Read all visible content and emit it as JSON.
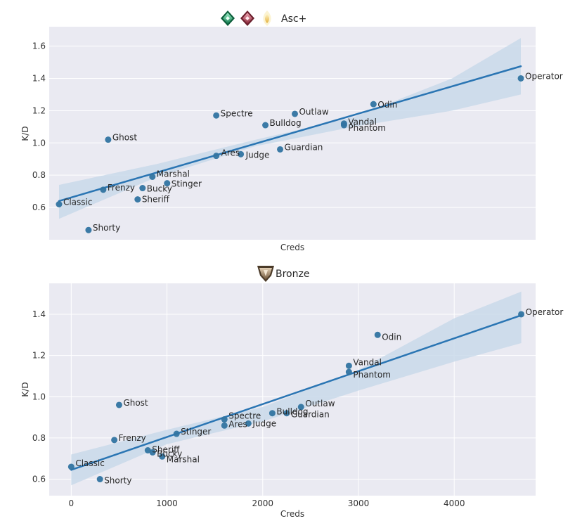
{
  "colors": {
    "background": "#ffffff",
    "plot_bg": "#eaeaf2",
    "point": "#3274a1",
    "line": "#2a75b3",
    "ci_band": "#c9d9ea",
    "grid": "#ffffff"
  },
  "chart_data": [
    {
      "type": "scatter",
      "title": "Asc+",
      "title_icons": [
        "green-rank-gem-icon",
        "red-rank-gem-icon",
        "gold-rank-wing-icon"
      ],
      "xlabel": "Creds",
      "ylabel": "K/D",
      "xlim": [
        -100,
        4850
      ],
      "ylim": [
        0.4,
        1.72
      ],
      "xticks": [],
      "yticks": [
        0.6,
        0.8,
        1.0,
        1.2,
        1.4,
        1.6
      ],
      "ytick_labels": [
        "0.6",
        "0.8",
        "1.0",
        "1.2",
        "1.4",
        "1.6"
      ],
      "regression": {
        "x0": 0,
        "y0": 0.64,
        "x1": 4700,
        "y1": 1.475
      },
      "ci_band": {
        "x": [
          0,
          1000,
          2000,
          3000,
          4000,
          4700
        ],
        "lower": [
          0.53,
          0.79,
          0.98,
          1.1,
          1.2,
          1.3
        ],
        "upper": [
          0.74,
          0.87,
          1.02,
          1.16,
          1.4,
          1.65
        ]
      },
      "points": [
        {
          "label": "Classic",
          "x": 0,
          "y": 0.62
        },
        {
          "label": "Shorty",
          "x": 300,
          "y": 0.46
        },
        {
          "label": "Frenzy",
          "x": 450,
          "y": 0.71
        },
        {
          "label": "Ghost",
          "x": 500,
          "y": 1.02
        },
        {
          "label": "Sheriff",
          "x": 800,
          "y": 0.65
        },
        {
          "label": "Bucky",
          "x": 850,
          "y": 0.72
        },
        {
          "label": "Marshal",
          "x": 950,
          "y": 0.79
        },
        {
          "label": "Stinger",
          "x": 1100,
          "y": 0.75
        },
        {
          "label": "Spectre",
          "x": 1600,
          "y": 1.17
        },
        {
          "label": "Ares",
          "x": 1600,
          "y": 0.92
        },
        {
          "label": "Judge",
          "x": 1850,
          "y": 0.93
        },
        {
          "label": "Bulldog",
          "x": 2100,
          "y": 1.11
        },
        {
          "label": "Guardian",
          "x": 2250,
          "y": 0.96
        },
        {
          "label": "Outlaw",
          "x": 2400,
          "y": 1.18
        },
        {
          "label": "Vandal",
          "x": 2900,
          "y": 1.12
        },
        {
          "label": "Phantom",
          "x": 2900,
          "y": 1.11
        },
        {
          "label": "Odin",
          "x": 3200,
          "y": 1.24
        },
        {
          "label": "Operator",
          "x": 4700,
          "y": 1.4
        }
      ]
    },
    {
      "type": "scatter",
      "title": "Bronze",
      "title_icons": [
        "bronze-rank-icon"
      ],
      "xlabel": "Creds",
      "ylabel": "K/D",
      "xlim": [
        -230,
        4850
      ],
      "ylim": [
        0.52,
        1.55
      ],
      "xticks": [
        0,
        1000,
        2000,
        3000,
        4000
      ],
      "xtick_labels": [
        "0",
        "1000",
        "2000",
        "3000",
        "4000"
      ],
      "yticks": [
        0.6,
        0.8,
        1.0,
        1.2,
        1.4
      ],
      "ytick_labels": [
        "0.6",
        "0.8",
        "1.0",
        "1.2",
        "1.4"
      ],
      "regression": {
        "x0": 0,
        "y0": 0.645,
        "x1": 4700,
        "y1": 1.395
      },
      "ci_band": {
        "x": [
          0,
          1000,
          2000,
          3000,
          4000,
          4700
        ],
        "lower": [
          0.57,
          0.77,
          0.88,
          1.03,
          1.17,
          1.26
        ],
        "upper": [
          0.72,
          0.84,
          0.95,
          1.13,
          1.38,
          1.51
        ]
      },
      "points": [
        {
          "label": "Classic",
          "x": 0,
          "y": 0.66
        },
        {
          "label": "Shorty",
          "x": 300,
          "y": 0.6
        },
        {
          "label": "Frenzy",
          "x": 450,
          "y": 0.79
        },
        {
          "label": "Ghost",
          "x": 500,
          "y": 0.96
        },
        {
          "label": "Sheriff",
          "x": 800,
          "y": 0.74
        },
        {
          "label": "Bucky",
          "x": 850,
          "y": 0.73
        },
        {
          "label": "Marshal",
          "x": 950,
          "y": 0.71
        },
        {
          "label": "Stinger",
          "x": 1100,
          "y": 0.82
        },
        {
          "label": "Spectre",
          "x": 1600,
          "y": 0.89
        },
        {
          "label": "Ares",
          "x": 1600,
          "y": 0.86
        },
        {
          "label": "Judge",
          "x": 1850,
          "y": 0.87
        },
        {
          "label": "Bulldog",
          "x": 2100,
          "y": 0.92
        },
        {
          "label": "Guardian",
          "x": 2250,
          "y": 0.92
        },
        {
          "label": "Outlaw",
          "x": 2400,
          "y": 0.95
        },
        {
          "label": "Vandal",
          "x": 2900,
          "y": 1.15
        },
        {
          "label": "Phantom",
          "x": 2900,
          "y": 1.12
        },
        {
          "label": "Odin",
          "x": 3200,
          "y": 1.3
        },
        {
          "label": "Operator",
          "x": 4700,
          "y": 1.4
        }
      ]
    }
  ]
}
